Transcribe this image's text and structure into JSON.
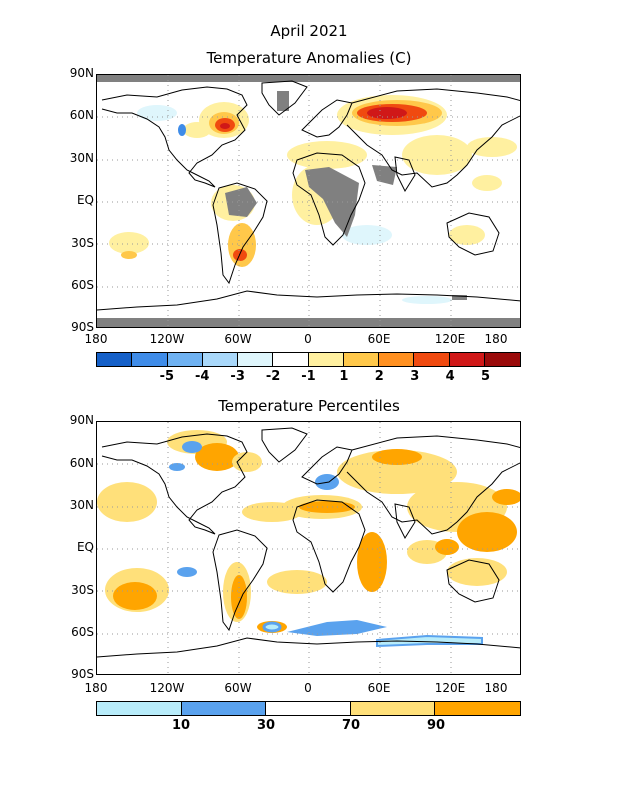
{
  "titles": {
    "line1": "April 2021",
    "line2": "Temperature Anomalies (C)",
    "panel2": "Temperature Percentiles"
  },
  "axes": {
    "lat_labels": [
      "90N",
      "60N",
      "30N",
      "EQ",
      "30S",
      "60S",
      "90S"
    ],
    "lon_labels": [
      "180",
      "120W",
      "60W",
      "0",
      "60E",
      "120E",
      "180"
    ]
  },
  "anomaly_legend": {
    "colors": [
      "#1560c8",
      "#3f8ce8",
      "#6fb2f2",
      "#a9d8fa",
      "#dff6fc",
      "#ffffff",
      "#fff0a0",
      "#ffc84a",
      "#ff9020",
      "#f04a10",
      "#d01818",
      "#9a0a0a"
    ],
    "labels": [
      "-5",
      "-4",
      "-3",
      "-2",
      "-1",
      "1",
      "2",
      "3",
      "4",
      "5"
    ]
  },
  "percentile_legend": {
    "colors": [
      "#b8ecfa",
      "#5aa2ee",
      "#ffffff",
      "#ffe07a",
      "#ffa500"
    ],
    "labels": [
      "10",
      "30",
      "70",
      "90"
    ]
  },
  "colors": {
    "missing": "#808080",
    "coast": "#000000",
    "grid": "#9a9a9a"
  }
}
